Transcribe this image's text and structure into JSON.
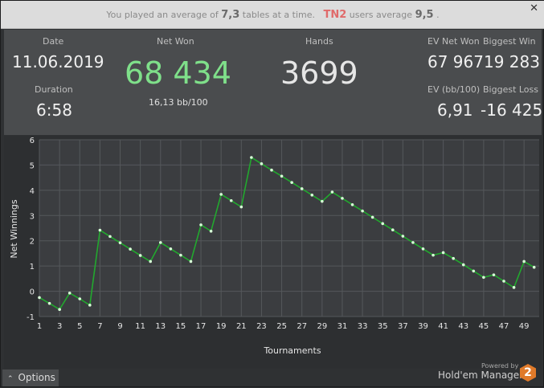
{
  "notice": {
    "prefix": "You played an average of",
    "tables": "7,3",
    "middle": "tables at a time.",
    "site": "TN2",
    "suffix_a": "users average",
    "site_average": "9,5",
    "suffix_b": "."
  },
  "close_label": "✕",
  "stats": {
    "date_label": "Date",
    "date_value": "11.06.2019",
    "duration_label": "Duration",
    "duration_value": "6:58",
    "net_won_label": "Net Won",
    "net_won_value": "68 434",
    "bb_per_100": "16,13 bb/100",
    "hands_label": "Hands",
    "hands_value": "3699",
    "ev_net_won_label": "EV Net Won",
    "ev_net_won_value": "67 967",
    "biggest_win_label": "Biggest Win",
    "biggest_win_value": "19 283",
    "ev_bb_label": "EV (bb/100)",
    "ev_bb_value": "6,91",
    "biggest_loss_label": "Biggest Loss",
    "biggest_loss_value": "-16 425"
  },
  "colors": {
    "net_won": "#7fe08a",
    "line": "#22a82e",
    "marker": "#d8ffd8"
  },
  "footer": {
    "options_label": "Options",
    "options_icon": "caret-up-icon",
    "powered_by": "Powered by",
    "brand": "Hold'em Manager",
    "logo_text": "2"
  },
  "chart_data": {
    "type": "line",
    "xlabel": "Tournaments",
    "ylabel": "Net Winnings",
    "xlim": [
      1,
      50
    ],
    "ylim": [
      -1,
      6
    ],
    "x_ticks": [
      1,
      3,
      5,
      7,
      9,
      11,
      13,
      15,
      17,
      19,
      21,
      23,
      25,
      27,
      29,
      31,
      33,
      35,
      37,
      39,
      41,
      43,
      45,
      47,
      49
    ],
    "y_ticks": [
      -1,
      0,
      1,
      2,
      3,
      4,
      5,
      6
    ],
    "grid": true,
    "series": [
      {
        "x": [
          1,
          2,
          3,
          4,
          5,
          6,
          7,
          8,
          9,
          10,
          11,
          12,
          13,
          14,
          15,
          16,
          17,
          18,
          19,
          20,
          21,
          22,
          23,
          24,
          25,
          26,
          27,
          28,
          29,
          30,
          31,
          32,
          33,
          34,
          35,
          36,
          37,
          38,
          39,
          40,
          41,
          42,
          43,
          44,
          45,
          46,
          47,
          48,
          49,
          50
        ],
        "values": [
          -0.25,
          -0.48,
          -0.72,
          -0.07,
          -0.3,
          -0.55,
          2.42,
          2.17,
          1.92,
          1.67,
          1.42,
          1.18,
          1.93,
          1.68,
          1.43,
          1.18,
          2.63,
          2.38,
          3.84,
          3.59,
          3.34,
          5.3,
          5.05,
          4.8,
          4.56,
          4.31,
          4.06,
          3.81,
          3.56,
          3.93,
          3.68,
          3.43,
          3.18,
          2.93,
          2.68,
          2.43,
          2.18,
          1.93,
          1.68,
          1.43,
          1.53,
          1.3,
          1.05,
          0.8,
          0.55,
          0.65,
          0.4,
          0.15,
          1.18,
          0.95
        ]
      }
    ]
  }
}
